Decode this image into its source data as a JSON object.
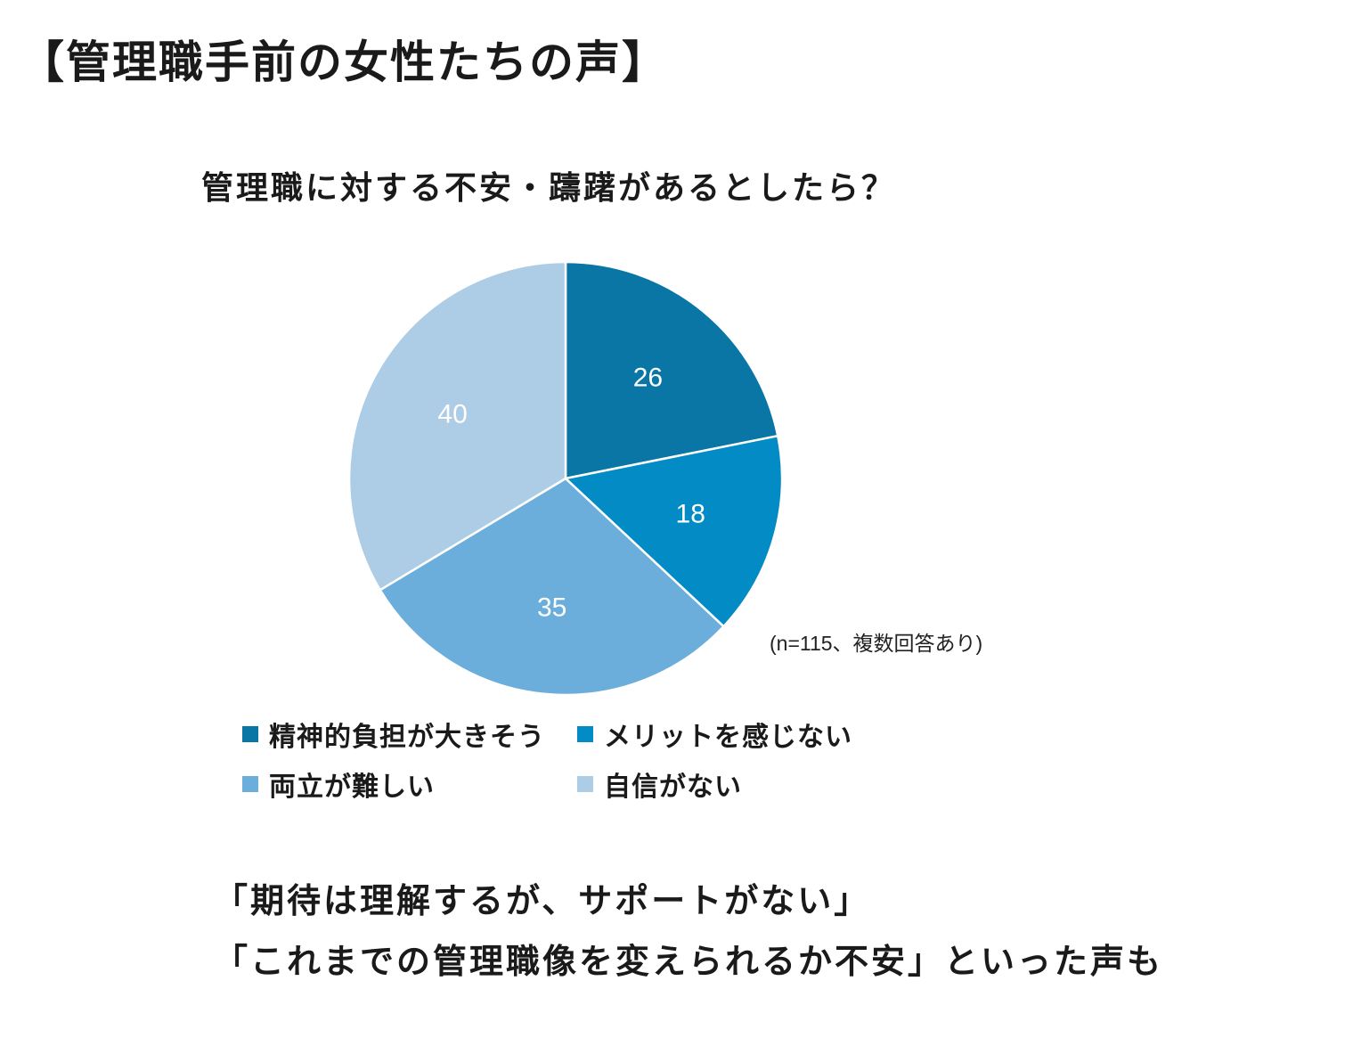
{
  "page_title": "【管理職手前の女性たちの声】",
  "note": "(n=115、複数回答あり)",
  "quotes": [
    "「期待は理解するが、サポートがない」",
    "「これまでの管理職像を変えられるか不安」といった声も"
  ],
  "chart_data": {
    "type": "pie",
    "title": "管理職に対する不安・躊躇があるとしたら？",
    "categories": [
      "精神的負担が大きそう",
      "メリットを感じない",
      "両立が難しい",
      "自信がない"
    ],
    "values": [
      26,
      18,
      35,
      40
    ],
    "colors": [
      "#0a76a6",
      "#028bc4",
      "#6caedb",
      "#adcce6"
    ],
    "legend_position": "bottom",
    "data_labels": true,
    "start_angle": "12 o'clock",
    "direction": "clockwise"
  }
}
